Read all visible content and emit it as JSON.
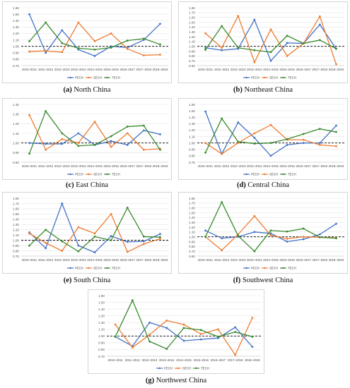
{
  "legend_entries": [
    "PECH",
    "SECH",
    "TECH"
  ],
  "colors": {
    "PECH": "#4472c4",
    "SECH": "#ed7d31",
    "TECH": "#3a8a2e",
    "reference": "#000000",
    "grid": "#e3e3e3"
  },
  "captions": [
    {
      "letter": "(a)",
      "text": " North China"
    },
    {
      "letter": "(b)",
      "text": " Northeast China"
    },
    {
      "letter": "(c)",
      "text": " East China"
    },
    {
      "letter": "(d)",
      "text": " Central China"
    },
    {
      "letter": "(e)",
      "text": " South China"
    },
    {
      "letter": "(f)",
      "text": " Southwest China"
    },
    {
      "letter": "(g)",
      "text": " Northwest China"
    }
  ],
  "chart_data": [
    {
      "type": "line",
      "categories": [
        "2010–2011",
        "2011–2012",
        "2012–2013",
        "2013–2014",
        "2014–2015",
        "2015–2016",
        "2016–2017",
        "2017–2018",
        "2018–2019"
      ],
      "ylim": [
        0.7,
        1.6
      ],
      "yticks": [
        0.7,
        0.8,
        0.9,
        1.0,
        1.1,
        1.2,
        1.3,
        1.4,
        1.5,
        1.6
      ],
      "reference_line": 1.0,
      "series": [
        {
          "name": "PECH",
          "values": [
            1.5,
            0.9,
            1.25,
            0.95,
            0.85,
            1.0,
            0.98,
            1.1,
            1.35
          ]
        },
        {
          "name": "SECH",
          "values": [
            0.92,
            0.93,
            0.91,
            1.37,
            1.08,
            1.2,
            0.96,
            0.86,
            0.87
          ]
        },
        {
          "name": "TECH",
          "values": [
            1.08,
            1.37,
            1.05,
            0.97,
            0.95,
            0.98,
            1.09,
            1.12,
            1.03
          ]
        }
      ]
    },
    {
      "type": "line",
      "categories": [
        "2010–2011",
        "2011–2012",
        "2012–2013",
        "2013–2014",
        "2014–2015",
        "2015–2016",
        "2016–2017",
        "2017–2018",
        "2018–2019"
      ],
      "ylim": [
        0.6,
        1.8
      ],
      "yticks": [
        0.6,
        0.7,
        0.8,
        0.9,
        1.0,
        1.1,
        1.2,
        1.3,
        1.4,
        1.5,
        1.6,
        1.7,
        1.8
      ],
      "reference_line": 1.0,
      "series": [
        {
          "name": "PECH",
          "values": [
            0.97,
            0.92,
            0.95,
            1.55,
            0.7,
            1.07,
            1.06,
            1.45,
            0.95
          ]
        },
        {
          "name": "SECH",
          "values": [
            1.27,
            0.97,
            1.63,
            0.67,
            1.35,
            0.8,
            1.06,
            1.62,
            0.63
          ]
        },
        {
          "name": "TECH",
          "values": [
            0.93,
            1.42,
            0.97,
            0.92,
            0.88,
            1.22,
            1.06,
            1.13,
            0.95
          ]
        }
      ]
    },
    {
      "type": "line",
      "categories": [
        "2010–2011",
        "2011–2012",
        "2012–2013",
        "2013–2014",
        "2014–2015",
        "2015–2016",
        "2016–2017",
        "2017–2018",
        "2018–2019"
      ],
      "ylim": [
        0.8,
        1.4
      ],
      "yticks": [
        0.8,
        0.9,
        1.0,
        1.1,
        1.2,
        1.3,
        1.4
      ],
      "reference_line": 1.0,
      "series": [
        {
          "name": "PECH",
          "values": [
            1.0,
            0.99,
            0.99,
            1.1,
            0.98,
            1.02,
            0.98,
            1.13,
            1.09
          ]
        },
        {
          "name": "SECH",
          "values": [
            1.29,
            0.93,
            1.04,
            1.0,
            1.22,
            0.96,
            1.1,
            0.93,
            0.94
          ]
        },
        {
          "name": "TECH",
          "values": [
            0.89,
            1.33,
            1.1,
            0.97,
            0.98,
            1.07,
            1.17,
            1.18,
            0.93
          ]
        }
      ]
    },
    {
      "type": "line",
      "categories": [
        "2010–2011",
        "2011–2012",
        "2012–2013",
        "2013–2014",
        "2014–2015",
        "2015–2016",
        "2016–2017",
        "2017–2018",
        "2018–2019"
      ],
      "ylim": [
        0.7,
        1.6
      ],
      "yticks": [
        0.7,
        0.8,
        0.9,
        1.0,
        1.1,
        1.2,
        1.3,
        1.4,
        1.5,
        1.6
      ],
      "reference_line": 1.0,
      "series": [
        {
          "name": "PECH",
          "values": [
            1.49,
            0.83,
            1.32,
            1.08,
            0.8,
            0.97,
            1.0,
            1.0,
            1.27
          ]
        },
        {
          "name": "SECH",
          "values": [
            1.0,
            0.83,
            1.0,
            1.15,
            1.28,
            1.05,
            1.05,
            0.97,
            0.95
          ]
        },
        {
          "name": "TECH",
          "values": [
            0.85,
            1.38,
            1.02,
            0.99,
            1.0,
            1.06,
            1.14,
            1.22,
            1.17
          ]
        }
      ]
    },
    {
      "type": "line",
      "categories": [
        "2010–2011",
        "2011–2012",
        "2012–2013",
        "2013–2014",
        "2014–2015",
        "2015–2016",
        "2016–2017",
        "2017–2018",
        "2018–2019"
      ],
      "ylim": [
        0.7,
        1.8
      ],
      "yticks": [
        0.7,
        0.8,
        0.9,
        1.0,
        1.1,
        1.2,
        1.3,
        1.4,
        1.5,
        1.6,
        1.7,
        1.8
      ],
      "reference_line": 1.0,
      "series": [
        {
          "name": "PECH",
          "values": [
            1.15,
            0.85,
            1.7,
            0.9,
            0.77,
            1.08,
            0.97,
            0.98,
            1.12
          ]
        },
        {
          "name": "SECH",
          "values": [
            1.13,
            0.95,
            0.8,
            1.25,
            1.13,
            1.5,
            0.78,
            0.93,
            1.03
          ]
        },
        {
          "name": "TECH",
          "values": [
            0.9,
            1.2,
            0.98,
            0.79,
            1.07,
            1.0,
            1.62,
            1.07,
            1.06
          ]
        }
      ]
    },
    {
      "type": "line",
      "categories": [
        "2010–2011",
        "2011–2012",
        "2012–2013",
        "2013–2014",
        "2014–2015",
        "2015–2016",
        "2016–2017",
        "2017–2018",
        "2018–2019"
      ],
      "ylim": [
        0.6,
        1.8
      ],
      "yticks": [
        0.6,
        0.7,
        0.8,
        0.9,
        1.0,
        1.1,
        1.2,
        1.3,
        1.4,
        1.5,
        1.6,
        1.7,
        1.8
      ],
      "reference_line": 1.0,
      "series": [
        {
          "name": "PECH",
          "values": [
            1.13,
            0.97,
            1.0,
            1.1,
            1.07,
            0.9,
            0.95,
            1.05,
            1.27
          ]
        },
        {
          "name": "SECH",
          "values": [
            1.0,
            0.72,
            1.05,
            1.43,
            1.03,
            0.96,
            1.0,
            0.99,
            0.98
          ]
        },
        {
          "name": "TECH",
          "values": [
            1.0,
            1.72,
            1.02,
            0.7,
            1.13,
            1.11,
            1.17,
            0.99,
            0.97
          ]
        }
      ]
    },
    {
      "type": "line",
      "categories": [
        "2010–2011",
        "2011–2012",
        "2012–2013",
        "2013–2014",
        "2014–2015",
        "2015–2016",
        "2016–2017",
        "2017–2018",
        "2018–2019"
      ],
      "ylim": [
        0.7,
        1.6
      ],
      "yticks": [
        0.7,
        0.8,
        0.9,
        1.0,
        1.1,
        1.2,
        1.3,
        1.4,
        1.5,
        1.6
      ],
      "reference_line": 1.0,
      "series": [
        {
          "name": "PECH",
          "values": [
            0.99,
            0.85,
            1.2,
            1.12,
            0.93,
            0.95,
            0.97,
            1.13,
            0.84
          ]
        },
        {
          "name": "SECH",
          "values": [
            1.17,
            0.83,
            1.02,
            1.23,
            1.17,
            1.03,
            1.1,
            0.72,
            1.27
          ]
        },
        {
          "name": "TECH",
          "values": [
            0.99,
            1.53,
            0.92,
            0.81,
            1.12,
            1.09,
            0.99,
            1.06,
            0.99
          ]
        }
      ]
    }
  ]
}
